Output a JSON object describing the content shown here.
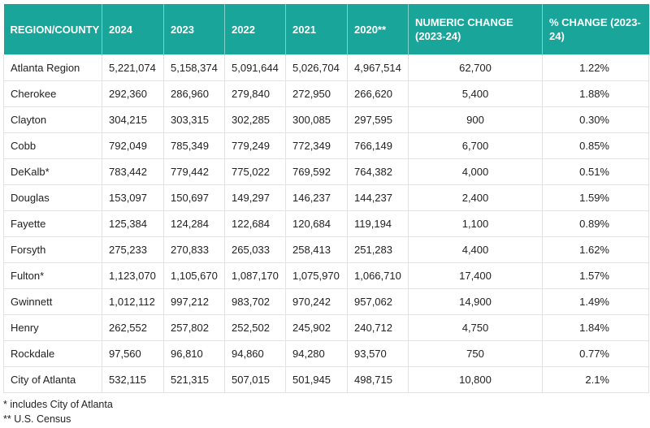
{
  "table": {
    "headers": [
      "REGION/COUNTY",
      "2024",
      "2023",
      "2022",
      "2021",
      "2020**",
      "NUMERIC CHANGE (2023-24)",
      "% CHANGE (2023-24)"
    ],
    "rows": [
      [
        "Atlanta Region",
        "5,221,074",
        "5,158,374",
        "5,091,644",
        "5,026,704",
        "4,967,514",
        "62,700",
        "1.22%"
      ],
      [
        "Cherokee",
        "292,360",
        "286,960",
        "279,840",
        "272,950",
        "266,620",
        "5,400",
        "1.88%"
      ],
      [
        "Clayton",
        "304,215",
        "303,315",
        "302,285",
        "300,085",
        "297,595",
        "900",
        "0.30%"
      ],
      [
        "Cobb",
        "792,049",
        "785,349",
        "779,249",
        "772,349",
        "766,149",
        "6,700",
        "0.85%"
      ],
      [
        "DeKalb*",
        "783,442",
        "779,442",
        "775,022",
        "769,592",
        "764,382",
        "4,000",
        "0.51%"
      ],
      [
        "Douglas",
        "153,097",
        "150,697",
        "149,297",
        "146,237",
        "144,237",
        "2,400",
        "1.59%"
      ],
      [
        "Fayette",
        "125,384",
        "124,284",
        "122,684",
        "120,684",
        "119,194",
        "1,100",
        "0.89%"
      ],
      [
        "Forsyth",
        "275,233",
        "270,833",
        "265,033",
        "258,413",
        "251,283",
        "4,400",
        "1.62%"
      ],
      [
        "Fulton*",
        "1,123,070",
        "1,105,670",
        "1,087,170",
        "1,075,970",
        "1,066,710",
        "17,400",
        "1.57%"
      ],
      [
        "Gwinnett",
        "1,012,112",
        "997,212",
        "983,702",
        "970,242",
        "957,062",
        "14,900",
        "1.49%"
      ],
      [
        "Henry",
        "262,552",
        "257,802",
        "252,502",
        "245,902",
        "240,712",
        "4,750",
        "1.84%"
      ],
      [
        "Rockdale",
        "97,560",
        "96,810",
        "94,860",
        "94,280",
        "93,570",
        "750",
        "0.77%"
      ],
      [
        "City of Atlanta",
        "532,115",
        "521,315",
        "507,015",
        "501,945",
        "498,715",
        "10,800",
        "2.1%"
      ]
    ]
  },
  "notes": [
    "* includes City of Atlanta",
    "** U.S. Census"
  ],
  "colors": {
    "header_background": "#1aa59a",
    "header_text": "#ffffff",
    "grid_line": "#e3e3e3"
  }
}
